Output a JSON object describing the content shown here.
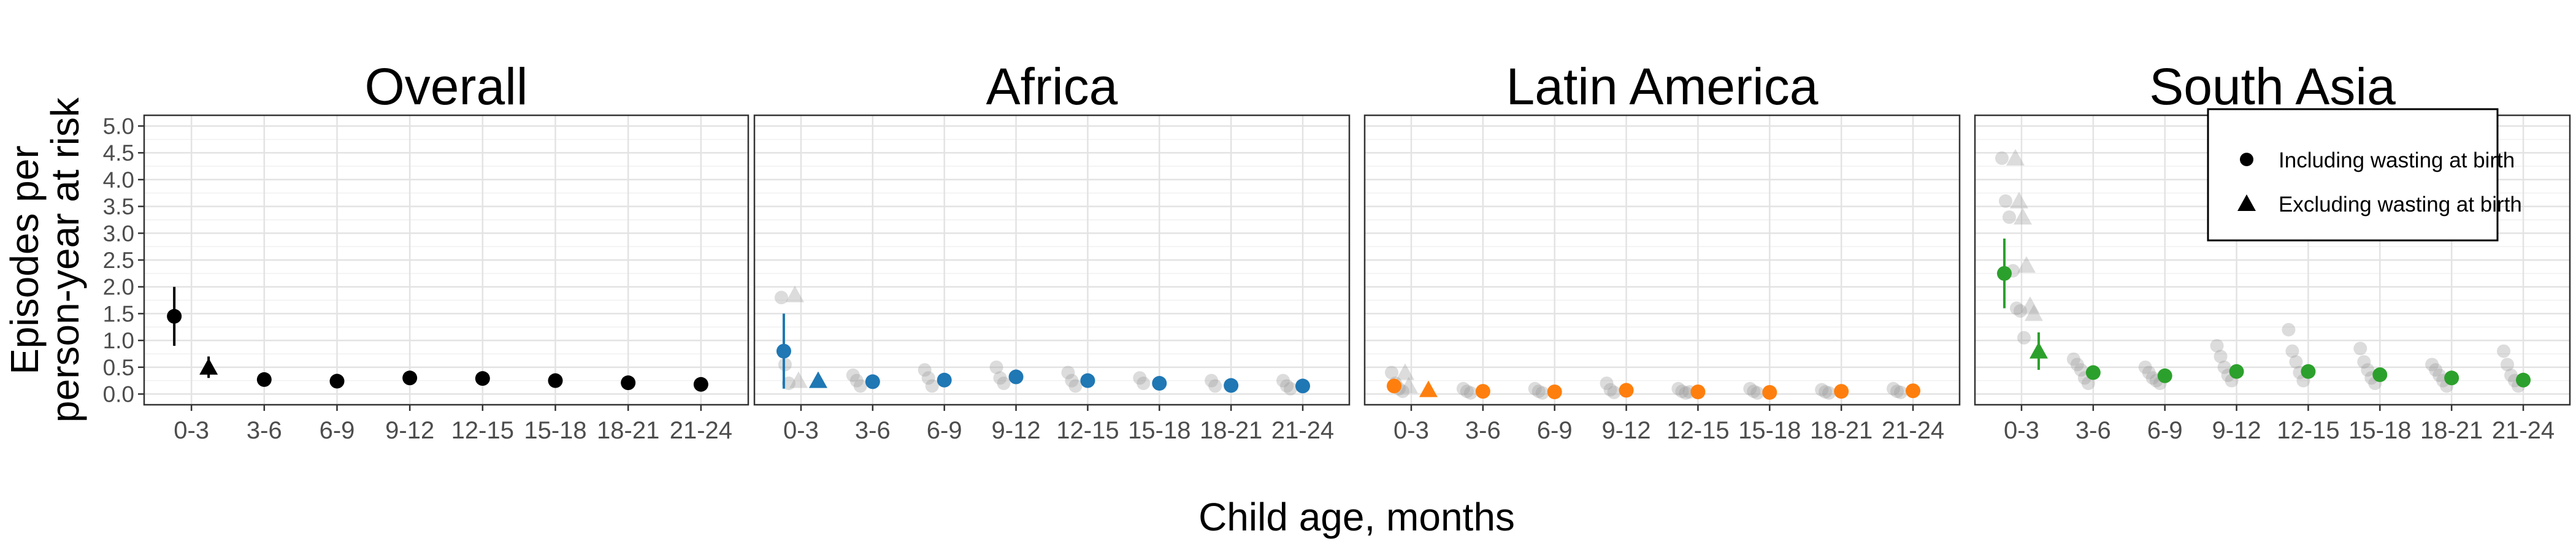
{
  "chart_data": {
    "type": "scatter",
    "ylabel": [
      "Episodes per",
      "person-year at risk"
    ],
    "xlabel": "Child age, months",
    "ylim": [
      -0.2,
      5.2
    ],
    "yticks": [
      0.0,
      0.5,
      1.0,
      1.5,
      2.0,
      2.5,
      3.0,
      3.5,
      4.0,
      4.5,
      5.0
    ],
    "ytick_labels": [
      "0.0",
      "0.5",
      "1.0",
      "1.5",
      "2.0",
      "2.5",
      "3.0",
      "3.5",
      "4.0",
      "4.5",
      "5.0"
    ],
    "categories": [
      "0-3",
      "3-6",
      "6-9",
      "9-12",
      "12-15",
      "15-18",
      "18-21",
      "21-24"
    ],
    "grid": true,
    "legend": {
      "position": "top-right",
      "entries": [
        {
          "label": "Including wasting at birth",
          "marker": "circle"
        },
        {
          "label": "Excluding wasting at birth",
          "marker": "triangle"
        }
      ]
    },
    "panels": [
      {
        "title": "Overall",
        "color": "#000000",
        "pooled": [
          {
            "x": "0-3",
            "marker": "circle",
            "y": 1.45,
            "lo": 0.9,
            "hi": 2.0
          },
          {
            "x": "0-3",
            "marker": "triangle",
            "y": 0.5,
            "lo": 0.3,
            "hi": 0.7
          },
          {
            "x": "3-6",
            "marker": "circle",
            "y": 0.27,
            "lo": 0.24,
            "hi": 0.3
          },
          {
            "x": "6-9",
            "marker": "circle",
            "y": 0.24,
            "lo": 0.21,
            "hi": 0.27
          },
          {
            "x": "9-12",
            "marker": "circle",
            "y": 0.3,
            "lo": 0.27,
            "hi": 0.33
          },
          {
            "x": "12-15",
            "marker": "circle",
            "y": 0.29,
            "lo": 0.26,
            "hi": 0.32
          },
          {
            "x": "15-18",
            "marker": "circle",
            "y": 0.25,
            "lo": 0.22,
            "hi": 0.28
          },
          {
            "x": "18-21",
            "marker": "circle",
            "y": 0.21,
            "lo": 0.19,
            "hi": 0.23
          },
          {
            "x": "21-24",
            "marker": "circle",
            "y": 0.18,
            "lo": 0.16,
            "hi": 0.2
          }
        ],
        "cohorts": []
      },
      {
        "title": "Africa",
        "color": "#1f77b4",
        "pooled": [
          {
            "x": "0-3",
            "marker": "circle",
            "y": 0.8,
            "lo": 0.1,
            "hi": 1.5
          },
          {
            "x": "0-3",
            "marker": "triangle",
            "y": 0.25,
            "lo": 0.18,
            "hi": 0.32
          },
          {
            "x": "3-6",
            "marker": "circle",
            "y": 0.23,
            "lo": 0.16,
            "hi": 0.3
          },
          {
            "x": "6-9",
            "marker": "circle",
            "y": 0.26,
            "lo": 0.16,
            "hi": 0.36
          },
          {
            "x": "9-12",
            "marker": "circle",
            "y": 0.32,
            "lo": 0.2,
            "hi": 0.44
          },
          {
            "x": "12-15",
            "marker": "circle",
            "y": 0.25,
            "lo": 0.18,
            "hi": 0.32
          },
          {
            "x": "15-18",
            "marker": "circle",
            "y": 0.2,
            "lo": 0.15,
            "hi": 0.25
          },
          {
            "x": "18-21",
            "marker": "circle",
            "y": 0.16,
            "lo": 0.12,
            "hi": 0.2
          },
          {
            "x": "21-24",
            "marker": "circle",
            "y": 0.15,
            "lo": 0.1,
            "hi": 0.2
          }
        ],
        "cohorts": [
          {
            "x": "0-3",
            "marker": "circle",
            "values": [
              1.8,
              0.55,
              0.2
            ]
          },
          {
            "x": "0-3",
            "marker": "triangle",
            "values": [
              1.85,
              0.25
            ]
          },
          {
            "x": "3-6",
            "marker": "circle",
            "values": [
              0.35,
              0.25,
              0.15
            ]
          },
          {
            "x": "6-9",
            "marker": "circle",
            "values": [
              0.45,
              0.3,
              0.15
            ]
          },
          {
            "x": "9-12",
            "marker": "circle",
            "values": [
              0.5,
              0.3,
              0.2
            ]
          },
          {
            "x": "12-15",
            "marker": "circle",
            "values": [
              0.4,
              0.25,
              0.15
            ]
          },
          {
            "x": "15-18",
            "marker": "circle",
            "values": [
              0.3,
              0.2
            ]
          },
          {
            "x": "18-21",
            "marker": "circle",
            "values": [
              0.25,
              0.15
            ]
          },
          {
            "x": "21-24",
            "marker": "circle",
            "values": [
              0.25,
              0.15,
              0.1
            ]
          }
        ]
      },
      {
        "title": "Latin America",
        "color": "#ff7f0e",
        "pooled": [
          {
            "x": "0-3",
            "marker": "circle",
            "y": 0.15,
            "lo": 0.05,
            "hi": 0.25
          },
          {
            "x": "0-3",
            "marker": "triangle",
            "y": 0.08,
            "lo": 0.04,
            "hi": 0.12
          },
          {
            "x": "3-6",
            "marker": "circle",
            "y": 0.05,
            "lo": 0.03,
            "hi": 0.07
          },
          {
            "x": "6-9",
            "marker": "circle",
            "y": 0.04,
            "lo": 0.02,
            "hi": 0.06
          },
          {
            "x": "9-12",
            "marker": "circle",
            "y": 0.07,
            "lo": 0.04,
            "hi": 0.1
          },
          {
            "x": "12-15",
            "marker": "circle",
            "y": 0.04,
            "lo": 0.02,
            "hi": 0.06
          },
          {
            "x": "15-18",
            "marker": "circle",
            "y": 0.03,
            "lo": 0.01,
            "hi": 0.05
          },
          {
            "x": "18-21",
            "marker": "circle",
            "y": 0.05,
            "lo": 0.03,
            "hi": 0.07
          },
          {
            "x": "21-24",
            "marker": "circle",
            "y": 0.06,
            "lo": 0.04,
            "hi": 0.08
          }
        ],
        "cohorts": [
          {
            "x": "0-3",
            "marker": "circle",
            "values": [
              0.4,
              0.2,
              0.1,
              0.05
            ]
          },
          {
            "x": "0-3",
            "marker": "triangle",
            "values": [
              0.4,
              0.15
            ]
          },
          {
            "x": "3-6",
            "marker": "circle",
            "values": [
              0.1,
              0.05,
              0.02
            ]
          },
          {
            "x": "6-9",
            "marker": "circle",
            "values": [
              0.1,
              0.05,
              0.02
            ]
          },
          {
            "x": "9-12",
            "marker": "circle",
            "values": [
              0.2,
              0.08,
              0.03
            ]
          },
          {
            "x": "12-15",
            "marker": "circle",
            "values": [
              0.1,
              0.05,
              0.02,
              0.04
            ]
          },
          {
            "x": "15-18",
            "marker": "circle",
            "values": [
              0.1,
              0.05,
              0.02
            ]
          },
          {
            "x": "18-21",
            "marker": "circle",
            "values": [
              0.08,
              0.04,
              0.02
            ]
          },
          {
            "x": "21-24",
            "marker": "circle",
            "values": [
              0.1,
              0.05,
              0.03
            ]
          }
        ]
      },
      {
        "title": "South Asia",
        "color": "#2ca02c",
        "pooled": [
          {
            "x": "0-3",
            "marker": "circle",
            "y": 2.25,
            "lo": 1.6,
            "hi": 2.9
          },
          {
            "x": "0-3",
            "marker": "triangle",
            "y": 0.8,
            "lo": 0.45,
            "hi": 1.15
          },
          {
            "x": "3-6",
            "marker": "circle",
            "y": 0.4,
            "lo": 0.32,
            "hi": 0.48
          },
          {
            "x": "6-9",
            "marker": "circle",
            "y": 0.34,
            "lo": 0.27,
            "hi": 0.41
          },
          {
            "x": "9-12",
            "marker": "circle",
            "y": 0.42,
            "lo": 0.33,
            "hi": 0.51
          },
          {
            "x": "12-15",
            "marker": "circle",
            "y": 0.42,
            "lo": 0.32,
            "hi": 0.52
          },
          {
            "x": "15-18",
            "marker": "circle",
            "y": 0.36,
            "lo": 0.29,
            "hi": 0.43
          },
          {
            "x": "18-21",
            "marker": "circle",
            "y": 0.3,
            "lo": 0.24,
            "hi": 0.36
          },
          {
            "x": "21-24",
            "marker": "circle",
            "y": 0.26,
            "lo": 0.2,
            "hi": 0.32
          }
        ],
        "cohorts": [
          {
            "x": "0-3",
            "marker": "circle",
            "values": [
              4.4,
              3.6,
              3.3,
              2.3,
              1.6,
              1.55,
              1.05
            ]
          },
          {
            "x": "0-3",
            "marker": "triangle",
            "values": [
              4.4,
              3.6,
              3.3,
              2.4,
              1.65,
              1.5
            ]
          },
          {
            "x": "3-6",
            "marker": "circle",
            "values": [
              0.65,
              0.55,
              0.45,
              0.3,
              0.2
            ]
          },
          {
            "x": "6-9",
            "marker": "circle",
            "values": [
              0.5,
              0.4,
              0.3,
              0.25,
              0.2
            ]
          },
          {
            "x": "9-12",
            "marker": "circle",
            "values": [
              0.9,
              0.7,
              0.5,
              0.35,
              0.25
            ]
          },
          {
            "x": "12-15",
            "marker": "circle",
            "values": [
              1.2,
              0.8,
              0.6,
              0.4,
              0.25
            ]
          },
          {
            "x": "15-18",
            "marker": "circle",
            "values": [
              0.85,
              0.6,
              0.45,
              0.3,
              0.2
            ]
          },
          {
            "x": "18-21",
            "marker": "circle",
            "values": [
              0.55,
              0.45,
              0.35,
              0.25,
              0.15
            ]
          },
          {
            "x": "21-24",
            "marker": "circle",
            "values": [
              0.8,
              0.55,
              0.35,
              0.25,
              0.15
            ]
          }
        ]
      }
    ]
  }
}
